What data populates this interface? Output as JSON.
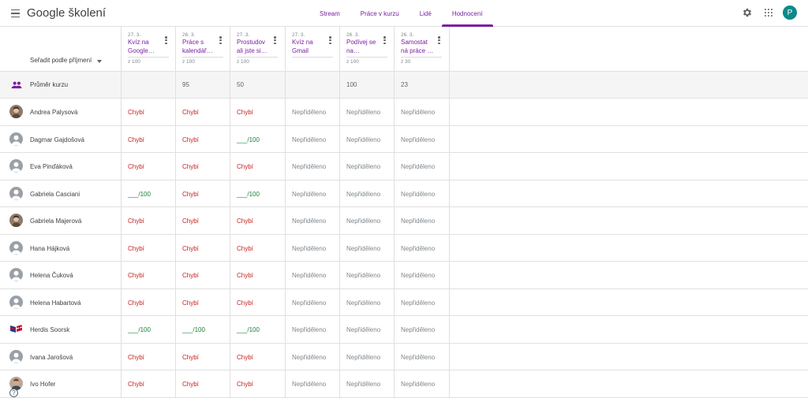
{
  "app": {
    "title": "Google školení",
    "account_initial": "P",
    "account_color": "#0b8a8a",
    "accent_color": "#7b1fa2"
  },
  "tabs": [
    {
      "label": "Stream",
      "active": false
    },
    {
      "label": "Práce v kurzu",
      "active": false
    },
    {
      "label": "Lidé",
      "active": false
    },
    {
      "label": "Hodnocení",
      "active": true
    }
  ],
  "sort": {
    "label": "Seřadit podle příjmení"
  },
  "assignments": [
    {
      "date": "27. 3.",
      "title_line1": "Kvíz na",
      "title_line2": "Google…",
      "points": "z 100"
    },
    {
      "date": "26. 3.",
      "title_line1": "Práce s",
      "title_line2": "kalendář…",
      "points": "z 100"
    },
    {
      "date": "27. 3.",
      "title_line1": "Prostudov",
      "title_line2": "ali jste si…",
      "points": "z 100"
    },
    {
      "date": "27. 3.",
      "title_line1": "Kvíz na",
      "title_line2": "Gmail",
      "points": ""
    },
    {
      "date": "26. 3.",
      "title_line1": "Podívej se",
      "title_line2": "na…",
      "points": "z 100"
    },
    {
      "date": "26. 3.",
      "title_line1": "Samostat",
      "title_line2": "ná práce …",
      "points": "z 30"
    }
  ],
  "average": {
    "label": "Průměr kurzu",
    "values": [
      "",
      "95",
      "50",
      "",
      "100",
      "23"
    ]
  },
  "students": [
    {
      "name": "Andrea Palysová",
      "avatar": "photo",
      "grades": [
        "Chybí",
        "Chybí",
        "Chybí",
        "Nepřiděleno",
        "Nepřiděleno",
        "Nepřiděleno"
      ]
    },
    {
      "name": "Dagmar Gajdošová",
      "avatar": "default",
      "grades": [
        "Chybí",
        "Chybí",
        "___/100",
        "Nepřiděleno",
        "Nepřiděleno",
        "Nepřiděleno"
      ]
    },
    {
      "name": "Eva Pinďáková",
      "avatar": "default",
      "grades": [
        "Chybí",
        "Chybí",
        "Chybí",
        "Nepřiděleno",
        "Nepřiděleno",
        "Nepřiděleno"
      ]
    },
    {
      "name": "Gabriela Casciani",
      "avatar": "default",
      "grades": [
        "___/100",
        "Chybí",
        "___/100",
        "Nepřiděleno",
        "Nepřiděleno",
        "Nepřiděleno"
      ]
    },
    {
      "name": "Gabriela Majerová",
      "avatar": "photo",
      "grades": [
        "Chybí",
        "Chybí",
        "Chybí",
        "Nepřiděleno",
        "Nepřiděleno",
        "Nepřiděleno"
      ]
    },
    {
      "name": "Hana Hájková",
      "avatar": "default",
      "grades": [
        "Chybí",
        "Chybí",
        "Chybí",
        "Nepřiděleno",
        "Nepřiděleno",
        "Nepřiděleno"
      ]
    },
    {
      "name": "Helena Čuková",
      "avatar": "default",
      "grades": [
        "Chybí",
        "Chybí",
        "Chybí",
        "Nepřiděleno",
        "Nepřiděleno",
        "Nepřiděleno"
      ]
    },
    {
      "name": "Helena Habartová",
      "avatar": "default",
      "grades": [
        "Chybí",
        "Chybí",
        "Chybí",
        "Nepřiděleno",
        "Nepřiděleno",
        "Nepřiděleno"
      ]
    },
    {
      "name": "Herdis Soorsk",
      "avatar": "flags",
      "grades": [
        "___/100",
        "___/100",
        "___/100",
        "Nepřiděleno",
        "Nepřiděleno",
        "Nepřiděleno"
      ]
    },
    {
      "name": "Ivana Jarošová",
      "avatar": "default",
      "grades": [
        "Chybí",
        "Chybí",
        "Chybí",
        "Nepřiděleno",
        "Nepřiděleno",
        "Nepřiděleno"
      ]
    },
    {
      "name": "Ivo Hofer",
      "avatar": "photo-male",
      "grades": [
        "Chybí",
        "Chybí",
        "Chybí",
        "Nepřiděleno",
        "Nepřiděleno",
        "Nepřiděleno"
      ]
    }
  ],
  "icons": {
    "menu": "menu-icon",
    "settings": "gear-icon",
    "apps": "apps-grid-icon",
    "class_average": "people-icon",
    "help": "help-icon"
  },
  "status_colors": {
    "missing": "#c5221f",
    "graded": "#188038",
    "unassigned": "#80868b"
  }
}
